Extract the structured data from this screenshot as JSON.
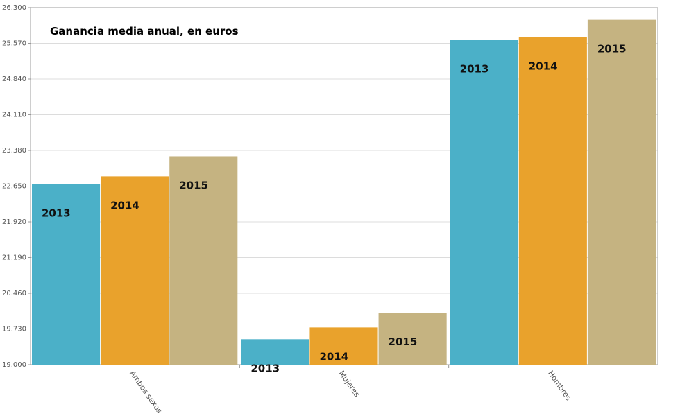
{
  "chart_data": {
    "type": "bar",
    "title": "Ganancia media anual, en euros",
    "categories": [
      "Ambos sexos",
      "Mujeres",
      "Hombres"
    ],
    "series": [
      {
        "label": "2013",
        "values": [
          22690,
          19520,
          25640
        ],
        "color": "#4bb0c8"
      },
      {
        "label": "2014",
        "values": [
          22850,
          19760,
          25700
        ],
        "color": "#e9a22c"
      },
      {
        "label": "2015",
        "values": [
          23260,
          20060,
          26050
        ],
        "color": "#c5b381"
      }
    ],
    "ylim": [
      19000,
      26300
    ],
    "yticks": [
      "19.000",
      "19.730",
      "20.460",
      "21.190",
      "21.920",
      "22.650",
      "23.380",
      "24.110",
      "24.840",
      "25.570",
      "26.300"
    ],
    "grid": true,
    "legend": "none"
  }
}
